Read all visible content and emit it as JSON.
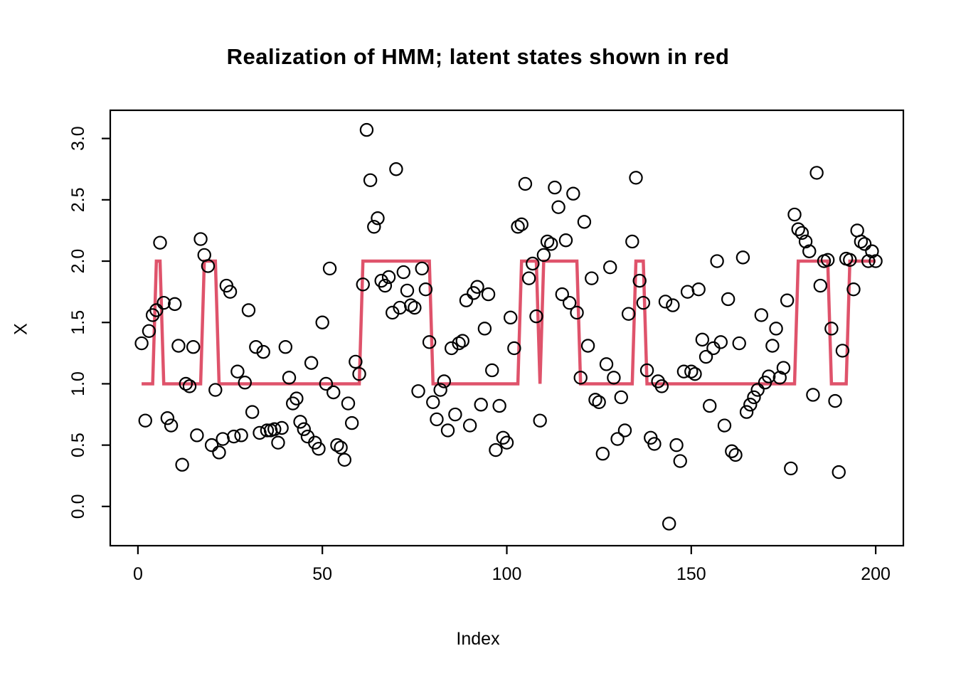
{
  "chart_data": {
    "type": "scatter",
    "title": "Realization of HMM; latent states shown in red",
    "xlabel": "Index",
    "ylabel": "X",
    "x_ticks": [
      0,
      50,
      100,
      150,
      200
    ],
    "y_ticks": [
      "0.0",
      "0.5",
      "1.0",
      "1.5",
      "2.0",
      "2.5",
      "3.0"
    ],
    "xlim": [
      -7.5,
      207.5
    ],
    "ylim": [
      -0.32,
      3.23
    ],
    "grid": false,
    "legend": "none",
    "marker": "open-circle",
    "point_color": "#000000",
    "line_color": "#DF536B",
    "x_start": 1,
    "n_points": 200,
    "series": [
      {
        "name": "observations",
        "type": "scatter",
        "x_is_index_from_1": true,
        "values": [
          1.33,
          0.7,
          1.43,
          1.56,
          1.6,
          2.15,
          1.66,
          0.72,
          0.66,
          1.65,
          1.31,
          0.34,
          1.0,
          0.98,
          1.3,
          0.58,
          2.18,
          2.05,
          1.96,
          0.5,
          0.95,
          0.44,
          0.55,
          1.8,
          1.75,
          0.57,
          1.1,
          0.58,
          1.01,
          1.6,
          0.77,
          1.3,
          0.6,
          1.26,
          0.62,
          0.62,
          0.63,
          0.52,
          0.64,
          1.3,
          1.05,
          0.84,
          0.88,
          0.69,
          0.63,
          0.57,
          1.17,
          0.52,
          0.47,
          1.5,
          1.0,
          1.94,
          0.93,
          0.5,
          0.48,
          0.38,
          0.84,
          0.68,
          1.18,
          1.08,
          1.81,
          3.07,
          2.66,
          2.28,
          2.35,
          1.84,
          1.8,
          1.87,
          1.58,
          2.75,
          1.62,
          1.91,
          1.76,
          1.64,
          1.62,
          0.94,
          1.94,
          1.77,
          1.34,
          0.85,
          0.71,
          0.95,
          1.02,
          0.62,
          1.29,
          0.75,
          1.33,
          1.35,
          1.68,
          0.66,
          1.74,
          1.79,
          0.83,
          1.45,
          1.73,
          1.11,
          0.46,
          0.82,
          0.56,
          0.52,
          1.54,
          1.29,
          2.28,
          2.3,
          2.63,
          1.86,
          1.98,
          1.55,
          0.7,
          2.05,
          2.16,
          2.14,
          2.6,
          2.44,
          1.73,
          2.17,
          1.66,
          2.55,
          1.58,
          1.05,
          2.32,
          1.31,
          1.86,
          0.87,
          0.85,
          0.43,
          1.16,
          1.95,
          1.05,
          0.55,
          0.89,
          0.62,
          1.57,
          2.16,
          2.68,
          1.84,
          1.66,
          1.11,
          0.56,
          0.51,
          1.02,
          0.98,
          1.67,
          -0.14,
          1.64,
          0.5,
          0.37,
          1.1,
          1.75,
          1.1,
          1.08,
          1.77,
          1.36,
          1.22,
          0.82,
          1.29,
          2.0,
          1.34,
          0.66,
          1.69,
          0.45,
          0.42,
          1.33,
          2.03,
          0.77,
          0.83,
          0.89,
          0.95,
          1.56,
          1.01,
          1.06,
          1.31,
          1.45,
          1.05,
          1.13,
          1.68,
          0.31,
          2.38,
          2.26,
          2.23,
          2.16,
          2.08,
          0.91,
          2.72,
          1.8,
          2.0,
          2.01,
          1.45,
          0.86,
          0.28,
          1.27,
          2.02,
          2.01,
          1.77,
          2.25,
          2.16,
          2.14,
          2.0,
          2.08,
          2.0
        ]
      },
      {
        "name": "latent states (red line)",
        "type": "line",
        "x_is_index_from_1": true,
        "state_runs_start_end_state": [
          [
            1,
            4,
            1
          ],
          [
            5,
            6,
            2
          ],
          [
            7,
            17,
            1
          ],
          [
            18,
            21,
            2
          ],
          [
            22,
            60,
            1
          ],
          [
            61,
            79,
            2
          ],
          [
            80,
            103,
            1
          ],
          [
            104,
            108,
            2
          ],
          [
            109,
            109,
            1
          ],
          [
            110,
            119,
            2
          ],
          [
            120,
            134,
            1
          ],
          [
            135,
            137,
            2
          ],
          [
            138,
            178,
            1
          ],
          [
            179,
            187,
            2
          ],
          [
            188,
            192,
            1
          ],
          [
            193,
            200,
            2
          ]
        ]
      }
    ]
  }
}
